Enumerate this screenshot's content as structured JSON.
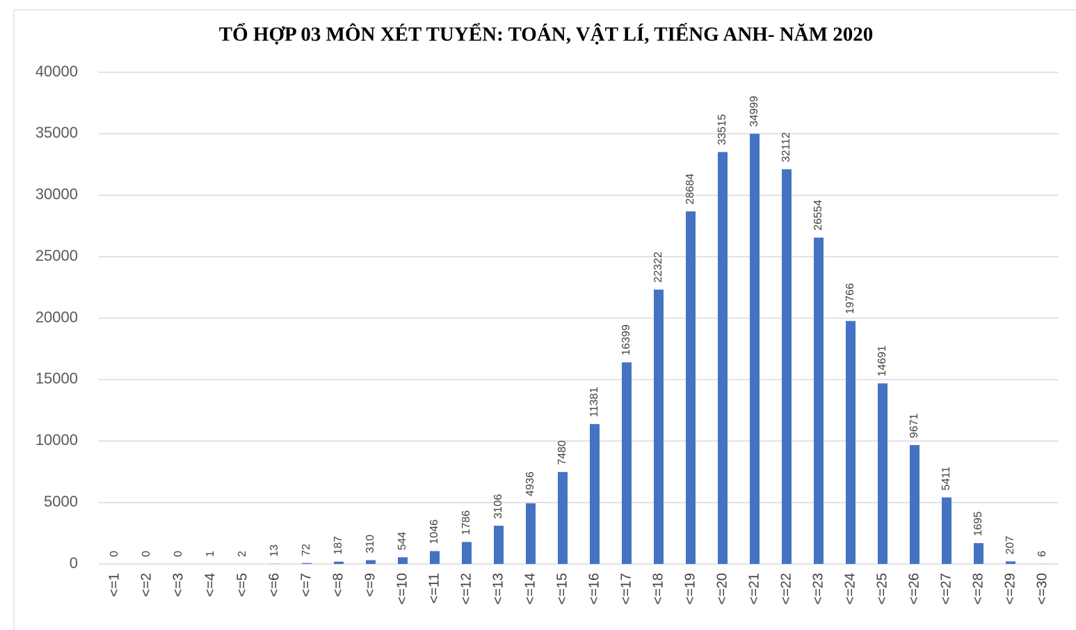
{
  "chart_data": {
    "type": "bar",
    "title": "TỔ HỢP 03 MÔN XÉT TUYỂN: TOÁN, VẬT LÍ, TIẾNG ANH- NĂM 2020",
    "categories": [
      "<=1",
      "<=2",
      "<=3",
      "<=4",
      "<=5",
      "<=6",
      "<=7",
      "<=8",
      "<=9",
      "<=10",
      "<=11",
      "<=12",
      "<=13",
      "<=14",
      "<=15",
      "<=16",
      "<=17",
      "<=18",
      "<=19",
      "<=20",
      "<=21",
      "<=22",
      "<=23",
      "<=24",
      "<=25",
      "<=26",
      "<=27",
      "<=28",
      "<=29",
      "<=30"
    ],
    "values": [
      0,
      0,
      0,
      1,
      2,
      13,
      72,
      187,
      310,
      544,
      1046,
      1786,
      3106,
      4936,
      7480,
      11381,
      16399,
      22322,
      28684,
      33515,
      34999,
      32112,
      26554,
      19766,
      14691,
      9671,
      5411,
      1695,
      207,
      6
    ],
    "color": "#4472c4",
    "ylim": [
      0,
      40000
    ],
    "yticks": [
      0,
      5000,
      10000,
      15000,
      20000,
      25000,
      30000,
      35000,
      40000
    ],
    "grid": true
  }
}
